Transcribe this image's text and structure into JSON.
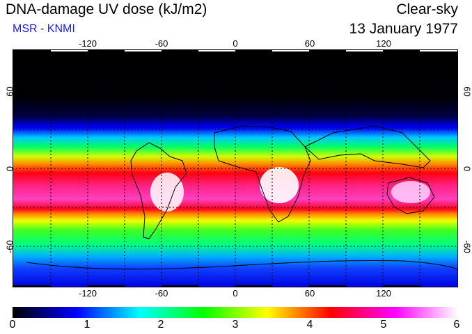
{
  "header": {
    "title": "DNA-damage UV dose (kJ/m2)",
    "source": "MSR - KNMI",
    "condition": "Clear-sky",
    "date": "13 January 1977"
  },
  "axes": {
    "lon_ticks": [
      "-120",
      "-60",
      "0",
      "60",
      "120"
    ],
    "lat_ticks": [
      "60",
      "0",
      "-60"
    ]
  },
  "colorbar": {
    "labels": [
      "0",
      "1",
      "2",
      "3",
      "4",
      "5",
      "6"
    ],
    "min": 0,
    "max": 6,
    "colors": [
      "#000000",
      "#0000ff",
      "#00ffff",
      "#00ff00",
      "#ffff00",
      "#ff0000",
      "#ff00ff",
      "#ffffff"
    ]
  }
}
